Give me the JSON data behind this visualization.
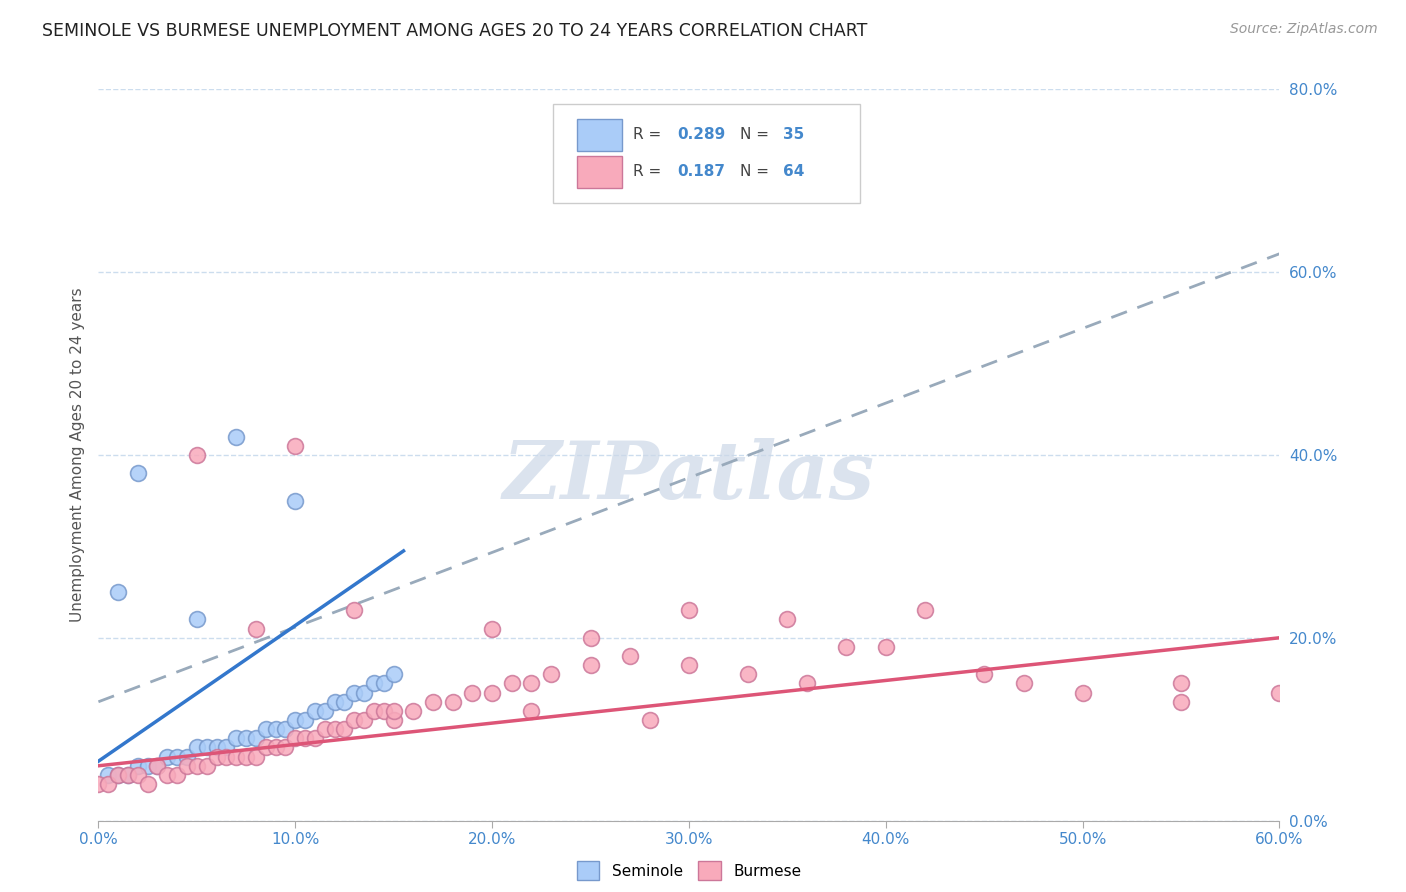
{
  "title": "SEMINOLE VS BURMESE UNEMPLOYMENT AMONG AGES 20 TO 24 YEARS CORRELATION CHART",
  "source": "Source: ZipAtlas.com",
  "ylabel": "Unemployment Among Ages 20 to 24 years",
  "xlim": [
    0.0,
    0.6
  ],
  "ylim": [
    0.0,
    0.8
  ],
  "xticks": [
    0.0,
    0.1,
    0.2,
    0.3,
    0.4,
    0.5,
    0.6
  ],
  "yticks": [
    0.0,
    0.2,
    0.4,
    0.6,
    0.8
  ],
  "seminole_R": 0.289,
  "seminole_N": 35,
  "burmese_R": 0.187,
  "burmese_N": 64,
  "seminole_color": "#aaccf8",
  "seminole_edge": "#7799cc",
  "burmese_color": "#f8aabb",
  "burmese_edge": "#cc7799",
  "seminole_trend_color": "#3377cc",
  "burmese_trend_color": "#dd5577",
  "dashed_trend_color": "#99aabb",
  "background_color": "#ffffff",
  "grid_color": "#ccddee",
  "title_color": "#222222",
  "axis_label_color": "#555555",
  "tick_label_color": "#4488cc",
  "watermark_color": "#ccd8e8",
  "seminole_x": [
    0.005,
    0.01,
    0.015,
    0.02,
    0.025,
    0.03,
    0.035,
    0.04,
    0.045,
    0.05,
    0.055,
    0.06,
    0.065,
    0.07,
    0.075,
    0.08,
    0.085,
    0.09,
    0.095,
    0.1,
    0.105,
    0.11,
    0.115,
    0.12,
    0.125,
    0.13,
    0.135,
    0.14,
    0.145,
    0.15,
    0.01,
    0.02,
    0.05,
    0.07,
    0.1
  ],
  "seminole_y": [
    0.05,
    0.05,
    0.05,
    0.06,
    0.06,
    0.06,
    0.07,
    0.07,
    0.07,
    0.08,
    0.08,
    0.08,
    0.08,
    0.09,
    0.09,
    0.09,
    0.1,
    0.1,
    0.1,
    0.11,
    0.11,
    0.12,
    0.12,
    0.13,
    0.13,
    0.14,
    0.14,
    0.15,
    0.15,
    0.16,
    0.25,
    0.38,
    0.22,
    0.42,
    0.35
  ],
  "burmese_x": [
    0.0,
    0.005,
    0.01,
    0.015,
    0.02,
    0.025,
    0.03,
    0.035,
    0.04,
    0.045,
    0.05,
    0.055,
    0.06,
    0.065,
    0.07,
    0.075,
    0.08,
    0.085,
    0.09,
    0.095,
    0.1,
    0.105,
    0.11,
    0.115,
    0.12,
    0.125,
    0.13,
    0.135,
    0.14,
    0.145,
    0.15,
    0.16,
    0.17,
    0.18,
    0.19,
    0.2,
    0.21,
    0.22,
    0.23,
    0.25,
    0.27,
    0.3,
    0.33,
    0.36,
    0.4,
    0.45,
    0.5,
    0.55,
    0.6,
    0.08,
    0.13,
    0.2,
    0.25,
    0.3,
    0.35,
    0.38,
    0.42,
    0.47,
    0.05,
    0.1,
    0.15,
    0.22,
    0.28,
    0.55
  ],
  "burmese_y": [
    0.04,
    0.04,
    0.05,
    0.05,
    0.05,
    0.04,
    0.06,
    0.05,
    0.05,
    0.06,
    0.06,
    0.06,
    0.07,
    0.07,
    0.07,
    0.07,
    0.07,
    0.08,
    0.08,
    0.08,
    0.09,
    0.09,
    0.09,
    0.1,
    0.1,
    0.1,
    0.11,
    0.11,
    0.12,
    0.12,
    0.11,
    0.12,
    0.13,
    0.13,
    0.14,
    0.14,
    0.15,
    0.15,
    0.16,
    0.17,
    0.18,
    0.17,
    0.16,
    0.15,
    0.19,
    0.16,
    0.14,
    0.13,
    0.14,
    0.21,
    0.23,
    0.21,
    0.2,
    0.23,
    0.22,
    0.19,
    0.23,
    0.15,
    0.4,
    0.41,
    0.12,
    0.12,
    0.11,
    0.15
  ]
}
